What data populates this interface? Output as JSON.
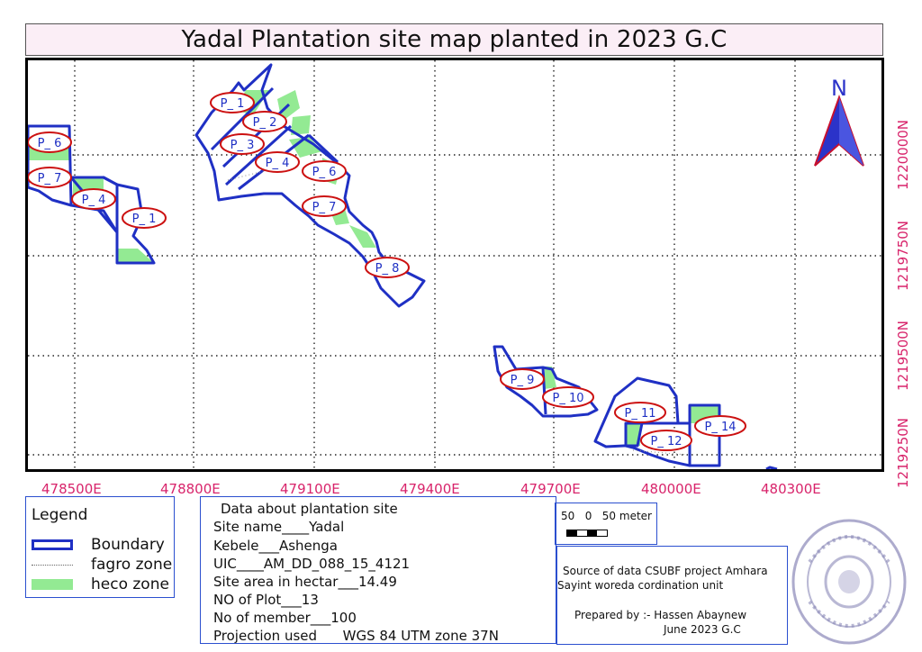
{
  "title": "Yadal Plantation site map planted in 2023 G.C",
  "x_labels": [
    "478500E",
    "478800E",
    "479100E",
    "479400E",
    "479700E",
    "480000E",
    "480300E"
  ],
  "y_labels": [
    "1220000N",
    "1219750N",
    "1219500N",
    "1219250N"
  ],
  "north_label": "N",
  "plots": [
    "P_ 6",
    "P_ 7",
    "P_ 4",
    "P_ 1",
    "P_ 1",
    "P_ 2",
    "P_ 3",
    "P_ 4",
    "P_ 6",
    "P_ 7",
    "P_ 8",
    "P_ 9",
    "P_ 10",
    "P_ 11",
    "P_ 12",
    "P_ 14"
  ],
  "legend": {
    "title": "Legend",
    "boundary": "Boundary",
    "fagro": "fagro zone",
    "heco": "heco zone"
  },
  "info": {
    "heading": "Data about plantation site",
    "lines": [
      "Site name____Yadal",
      "Kebele___Ashenga",
      "UIC____AM_DD_088_15_4121",
      "Site area in hectar___14.49",
      "NO of Plot___13",
      "No of member___100",
      "Projection used      WGS 84 UTM zone 37N"
    ]
  },
  "scale_label": "50   0   50 meter",
  "source": {
    "line1": "Source of data CSUBF project Amhara",
    "line2": "Sayint woreda cordination unit",
    "prepared": "Prepared by :- Hassen Abaynew",
    "date": "June 2023 G.C"
  },
  "colors": {
    "boundary": "#1f30c4",
    "heco": "#93ea93",
    "label_ellipse": "#cc1111",
    "coord_label": "#d8246b",
    "north_arrow": "#2b33c9"
  }
}
